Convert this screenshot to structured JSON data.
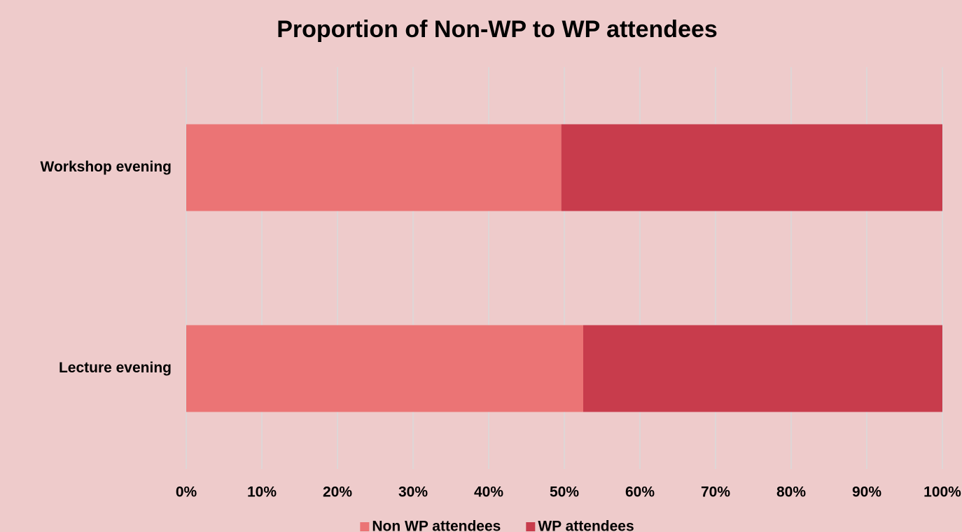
{
  "chart_data": {
    "type": "stacked-bar-horizontal",
    "title": "Proportion of Non-WP to WP attendees",
    "categories": [
      "Workshop evening",
      "Lecture evening"
    ],
    "series": [
      {
        "name": "Non WP attendees",
        "color": "#eb7475",
        "values": [
          49.6,
          52.5
        ]
      },
      {
        "name": "WP attendees",
        "color": "#c83c4c",
        "values": [
          50.4,
          47.5
        ]
      }
    ],
    "xlim": [
      0,
      100
    ],
    "xticks": [
      {
        "value": 0,
        "label": "0%"
      },
      {
        "value": 10,
        "label": "10%"
      },
      {
        "value": 20,
        "label": "20%"
      },
      {
        "value": 30,
        "label": "30%"
      },
      {
        "value": 40,
        "label": "40%"
      },
      {
        "value": 50,
        "label": "50%"
      },
      {
        "value": 60,
        "label": "60%"
      },
      {
        "value": 70,
        "label": "70%"
      },
      {
        "value": 80,
        "label": "80%"
      },
      {
        "value": 90,
        "label": "90%"
      },
      {
        "value": 100,
        "label": "100%"
      }
    ],
    "grid": true,
    "legend": "bottom"
  }
}
